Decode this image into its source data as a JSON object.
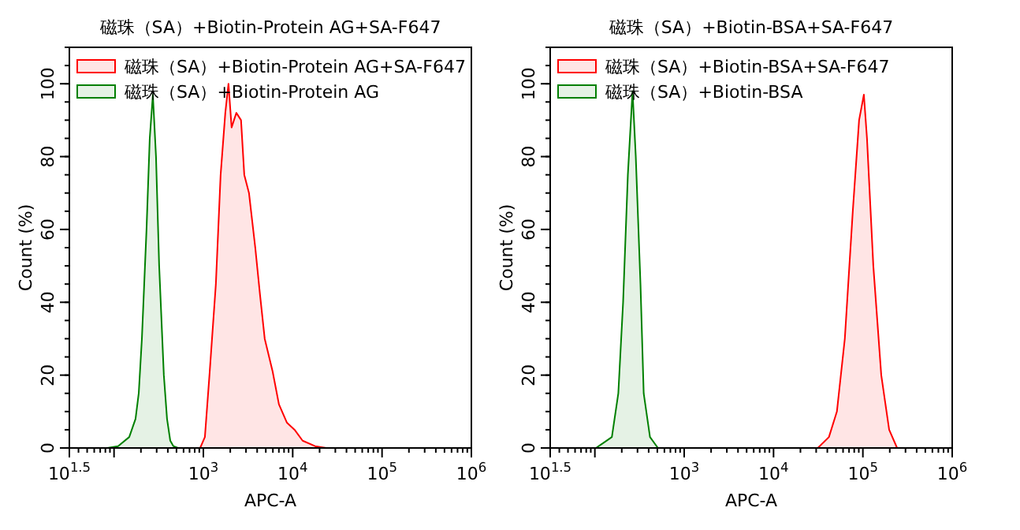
{
  "chart_data": [
    {
      "type": "area",
      "title": "磁珠（SA）+Biotin-Protein AG+SA-F647",
      "xlabel": "APC-A",
      "ylabel": "Count (%)",
      "log": "x",
      "legend": "top left",
      "xlim": [
        31.62,
        1000000
      ],
      "xticks": [
        {
          "value": 31.62,
          "label": "10$^{1.5}$"
        },
        {
          "value": 100,
          "label": null
        },
        {
          "value": 1000,
          "label": "10$^{3}$"
        },
        {
          "value": 10000,
          "label": "10$^{4}$"
        },
        {
          "value": 100000,
          "label": "10$^{5}$"
        },
        {
          "value": 1000000,
          "label": "10$^{6}$"
        }
      ],
      "ylim": [
        0,
        110
      ],
      "yticks": [
        0,
        20,
        40,
        60,
        80,
        100
      ],
      "series": [
        {
          "name": "磁珠（SA）+Biotin-Protein AG+SA-F647",
          "color": "#ff0000",
          "x": [
            920,
            1040,
            1170,
            1380,
            1560,
            1760,
            1910,
            2070,
            2340,
            2640,
            2870,
            3240,
            3810,
            4310,
            4860,
            5960,
            7010,
            8590,
            10500,
            12900,
            17800,
            23700
          ],
          "values": [
            0,
            3,
            20,
            45,
            75,
            92,
            100,
            88,
            92,
            90,
            75,
            70,
            55,
            42,
            30,
            21,
            12,
            7,
            5,
            2,
            0.5,
            0
          ]
        },
        {
          "name": "磁珠（SA）+Biotin-Protein AG",
          "color": "#008000",
          "x": [
            84,
            111,
            148,
            174,
            189,
            205,
            231,
            251,
            272,
            295,
            320,
            361,
            392,
            426,
            462,
            521
          ],
          "values": [
            0,
            0.5,
            3,
            8,
            15,
            30,
            60,
            85,
            97,
            80,
            50,
            20,
            8,
            2,
            0.5,
            0
          ]
        }
      ]
    },
    {
      "type": "area",
      "title": "磁珠（SA）+Biotin-BSA+SA-F647",
      "xlabel": "APC-A",
      "ylabel": "Count (%)",
      "log": "x",
      "legend": "top left",
      "xlim": [
        31.62,
        1000000
      ],
      "xticks": [
        {
          "value": 31.62,
          "label": "10$^{1.5}$"
        },
        {
          "value": 100,
          "label": null
        },
        {
          "value": 1000,
          "label": "10$^{3}$"
        },
        {
          "value": 10000,
          "label": "10$^{4}$"
        },
        {
          "value": 100000,
          "label": "10$^{5}$"
        },
        {
          "value": 1000000,
          "label": "10$^{6}$"
        }
      ],
      "ylim": [
        0,
        110
      ],
      "yticks": [
        0,
        20,
        40,
        60,
        80,
        100
      ],
      "series": [
        {
          "name": "磁珠（SA）+Biotin-BSA+SA-F647",
          "color": "#ff0000",
          "x": [
            31300,
            41700,
            51200,
            62800,
            77100,
            90700,
            102600,
            111200,
            130900,
            160600,
            196900,
            241600
          ],
          "values": [
            0,
            3,
            10,
            30,
            65,
            90,
            97,
            85,
            50,
            20,
            5,
            0
          ]
        },
        {
          "name": "磁珠（SA）+Biotin-BSA",
          "color": "#008000",
          "x": [
            103,
            155,
            183,
            207,
            234,
            264,
            287,
            324,
            352,
            414,
            508
          ],
          "values": [
            0,
            3,
            15,
            40,
            75,
            98,
            80,
            45,
            15,
            3,
            0
          ]
        }
      ]
    }
  ]
}
